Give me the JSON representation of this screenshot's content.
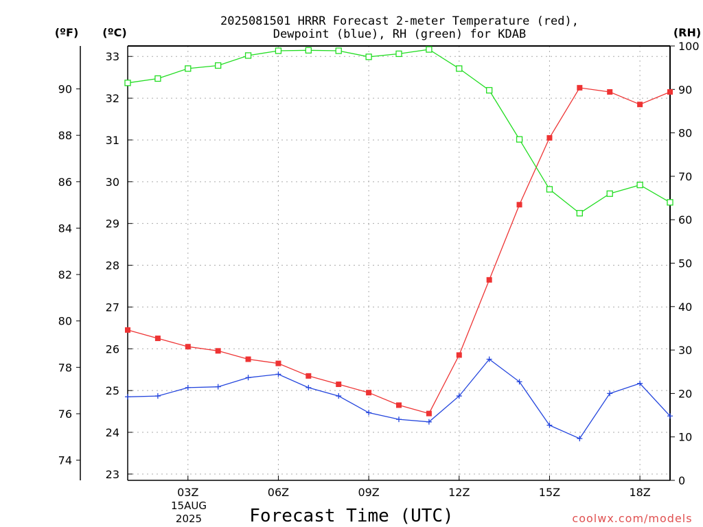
{
  "chart_data": {
    "type": "line",
    "title_line1": "2025081501 HRRR Forecast 2-meter Temperature (red),",
    "title_line2": "Dewpoint (blue), RH (green) for KDAB",
    "xlabel": "Forecast Time (UTC)",
    "y_left_outer_label": "(ºF)",
    "y_left_inner_label": "(ºC)",
    "y_right_label": "(RH)",
    "date_label_line1": "15AUG",
    "date_label_line2": "2025",
    "watermark": "coolwx.com/models",
    "x_hours": [
      1,
      2,
      3,
      4,
      5,
      6,
      7,
      8,
      9,
      10,
      11,
      12,
      13,
      14,
      15,
      16,
      17,
      18,
      19
    ],
    "x_ticks": [
      {
        "hour": 3,
        "label": "03Z"
      },
      {
        "hour": 6,
        "label": "06Z"
      },
      {
        "hour": 9,
        "label": "09Z"
      },
      {
        "hour": 12,
        "label": "12Z"
      },
      {
        "hour": 15,
        "label": "15Z"
      },
      {
        "hour": 18,
        "label": "18Z"
      }
    ],
    "x_range": [
      1,
      19
    ],
    "celsius_ticks": [
      "23",
      "24",
      "25",
      "26",
      "27",
      "28",
      "29",
      "30",
      "31",
      "32",
      "33"
    ],
    "celsius_range": [
      22.85,
      33.25
    ],
    "fahrenheit_ticks": [
      "74",
      "76",
      "78",
      "80",
      "82",
      "84",
      "86",
      "88",
      "90"
    ],
    "rh_ticks": [
      "0",
      "10",
      "20",
      "30",
      "40",
      "50",
      "60",
      "70",
      "80",
      "90",
      "100"
    ],
    "rh_range": [
      0,
      100
    ],
    "grid": true,
    "series": [
      {
        "name": "Temperature",
        "color": "#ee3333",
        "marker": "filled-square",
        "unit": "C",
        "values": [
          26.45,
          26.25,
          26.05,
          25.95,
          25.75,
          25.65,
          25.35,
          25.15,
          24.95,
          24.65,
          24.45,
          25.85,
          27.65,
          29.45,
          31.05,
          32.25,
          32.15,
          31.85,
          32.15
        ]
      },
      {
        "name": "Dewpoint",
        "color": "#2244dd",
        "marker": "plus",
        "unit": "C",
        "values": [
          24.85,
          24.87,
          25.07,
          25.09,
          25.31,
          25.39,
          25.07,
          24.87,
          24.47,
          24.31,
          24.25,
          24.87,
          25.75,
          25.21,
          24.17,
          23.85,
          24.93,
          25.17,
          24.39
        ]
      },
      {
        "name": "RH",
        "color": "#22dd22",
        "marker": "open-square",
        "unit": "%",
        "values": [
          91.5,
          92.5,
          94.8,
          95.5,
          97.8,
          98.9,
          99.0,
          98.9,
          97.5,
          98.2,
          99.2,
          94.8,
          89.8,
          78.5,
          67.0,
          61.5,
          66.0,
          68.0,
          64.0
        ]
      }
    ]
  }
}
